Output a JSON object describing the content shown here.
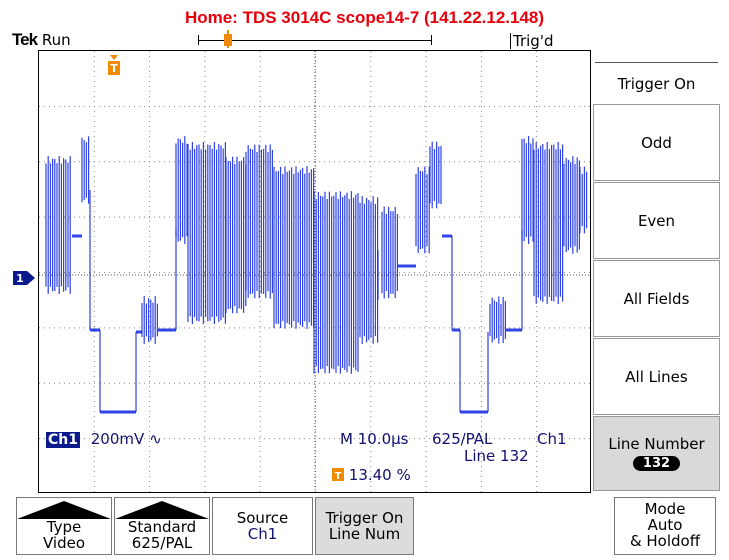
{
  "header": {
    "title": "Home:  TDS 3014C  scope14-7  (141.22.12.148)",
    "brand": "Tek",
    "run_state": "Run",
    "trigger_state": "Trig'd"
  },
  "readouts": {
    "channel": "Ch1",
    "volts_per_div": "200mV",
    "coupling_icon": "ac-coupling-icon",
    "timebase": "M 10.0µs",
    "standard": "625/PAL",
    "trigger_source": "Ch1",
    "line": "Line 132",
    "trigger_position": "13.40 %",
    "waveform_color": "#1a2fe0"
  },
  "side_menu": {
    "header": "Trigger On",
    "items": [
      {
        "label": "Odd"
      },
      {
        "label": "Even"
      },
      {
        "label": "All Fields"
      },
      {
        "label": "All Lines"
      },
      {
        "label": "Line Number",
        "value": "132",
        "selected": true
      }
    ]
  },
  "bottom_menu": [
    {
      "line1": "Type",
      "line2": "Video"
    },
    {
      "line1": "Standard",
      "line2": "625/PAL"
    },
    {
      "line1": "Source",
      "line2": "Ch1"
    },
    {
      "line1": "Trigger On",
      "line2": "Line Num",
      "selected": true
    },
    {
      "line1": "Mode",
      "line2": "Auto",
      "line3": "& Holdoff"
    }
  ]
}
